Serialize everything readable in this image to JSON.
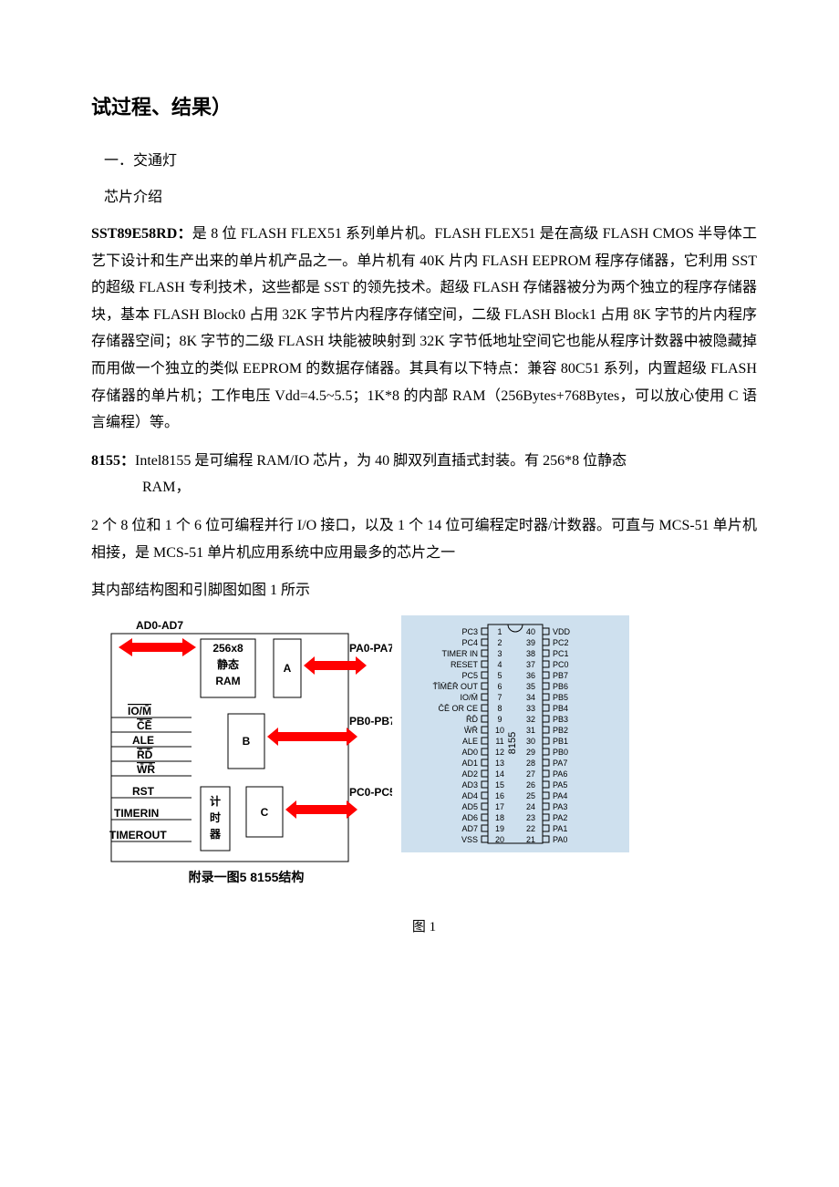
{
  "title": "试过程、结果）",
  "section1": "一．交通灯",
  "section2": "芯片介绍",
  "para1": {
    "bold": "SST89E58RD：",
    "text": "是 8 位 FLASH FLEX51 系列单片机。FLASH FLEX51 是在高级 FLASH CMOS 半导体工艺下设计和生产出来的单片机产品之一。单片机有 40K 片内 FLASH EEPROM 程序存储器，它利用 SST 的超级 FLASH 专利技术，这些都是 SST 的领先技术。超级 FLASH 存储器被分为两个独立的程序存储器块，基本 FLASH Block0 占用 32K 字节片内程序存储空间，二级 FLASH Block1 占用 8K 字节的片内程序存储器空间；8K 字节的二级 FLASH 块能被映射到 32K 字节低地址空间它也能从程序计数器中被隐藏掉而用做一个独立的类似 EEPROM 的数据存储器。其具有以下特点：兼容 80C51 系列，内置超级 FLASH 存储器的单片机；工作电压 Vdd=4.5~5.5；1K*8 的内部 RAM（256Bytes+768Bytes，可以放心使用 C 语言编程）等。"
  },
  "para2": {
    "bold": "8155：",
    "text": "Intel8155 是可编程 RAM/IO 芯片，为 40 脚双列直插式封装。有 256*8 位静态",
    "cont": "RAM，"
  },
  "para3": "2 个 8 位和 1 个 6 位可编程并行 I/O 接口，以及 1 个 14 位可编程定时器/计数器。可直与 MCS-51 单片机相接，是 MCS-51 单片机应用系统中应用最多的芯片之一",
  "para4": "其内部结构图和引脚图如图 1 所示",
  "figcaption": "图 1",
  "block": {
    "caption": "附录一图5 8155结构",
    "bus": "AD0-AD7",
    "ram": {
      "top": "256x8",
      "mid": "静态",
      "bot": "RAM"
    },
    "portA_lbl": "A",
    "portA_sig": "PA0-PA7",
    "portB_lbl": "B",
    "portB_sig": "PB0-PB7",
    "portC_lbl": "C",
    "portC_sig": "PC0-PC5",
    "timer": {
      "a": "计",
      "b": "时",
      "c": "器"
    },
    "ctrl": [
      "IO/M̄",
      "C̄Ē",
      "ALE",
      "R̄D̄",
      "W̄R̄",
      "RST",
      "TIMERIN",
      "TIMEROUT"
    ],
    "arrow_color": "#ff0000",
    "outline_color": "#000000"
  },
  "pinout": {
    "bg": "#cee0ee",
    "chip_label": "8155",
    "left": [
      {
        "n": "1",
        "lbl": "PC3"
      },
      {
        "n": "2",
        "lbl": "PC4"
      },
      {
        "n": "3",
        "lbl": "TIMER IN"
      },
      {
        "n": "4",
        "lbl": "RESET"
      },
      {
        "n": "5",
        "lbl": "PC5"
      },
      {
        "n": "6",
        "lbl": "T̄ĪM̄ĒR̄ OUT"
      },
      {
        "n": "7",
        "lbl": "IO/M̄"
      },
      {
        "n": "8",
        "lbl": "C̄Ē OR CE"
      },
      {
        "n": "9",
        "lbl": "R̄D̄"
      },
      {
        "n": "10",
        "lbl": "W̄R̄"
      },
      {
        "n": "11",
        "lbl": "ALE"
      },
      {
        "n": "12",
        "lbl": "AD0"
      },
      {
        "n": "13",
        "lbl": "AD1"
      },
      {
        "n": "14",
        "lbl": "AD2"
      },
      {
        "n": "15",
        "lbl": "AD3"
      },
      {
        "n": "16",
        "lbl": "AD4"
      },
      {
        "n": "17",
        "lbl": "AD5"
      },
      {
        "n": "18",
        "lbl": "AD6"
      },
      {
        "n": "19",
        "lbl": "AD7"
      },
      {
        "n": "20",
        "lbl": "VSS"
      }
    ],
    "right": [
      {
        "n": "40",
        "lbl": "VDD"
      },
      {
        "n": "39",
        "lbl": "PC2"
      },
      {
        "n": "38",
        "lbl": "PC1"
      },
      {
        "n": "37",
        "lbl": "PC0"
      },
      {
        "n": "36",
        "lbl": "PB7"
      },
      {
        "n": "35",
        "lbl": "PB6"
      },
      {
        "n": "34",
        "lbl": "PB5"
      },
      {
        "n": "33",
        "lbl": "PB4"
      },
      {
        "n": "32",
        "lbl": "PB3"
      },
      {
        "n": "31",
        "lbl": "PB2"
      },
      {
        "n": "30",
        "lbl": "PB1"
      },
      {
        "n": "29",
        "lbl": "PB0"
      },
      {
        "n": "28",
        "lbl": "PA7"
      },
      {
        "n": "27",
        "lbl": "PA6"
      },
      {
        "n": "26",
        "lbl": "PA5"
      },
      {
        "n": "25",
        "lbl": "PA4"
      },
      {
        "n": "24",
        "lbl": "PA3"
      },
      {
        "n": "23",
        "lbl": "PA2"
      },
      {
        "n": "22",
        "lbl": "PA1"
      },
      {
        "n": "21",
        "lbl": "PA0"
      }
    ]
  }
}
